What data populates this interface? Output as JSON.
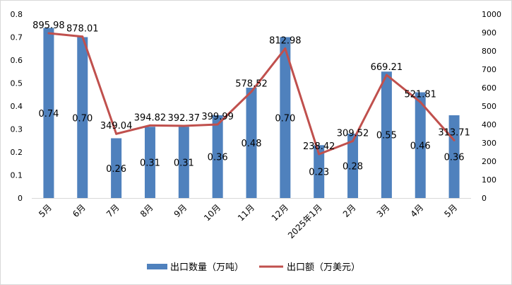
{
  "chart_data": {
    "type": "bar+line",
    "categories": [
      "5月",
      "6月",
      "7月",
      "8月",
      "9月",
      "10月",
      "11月",
      "12月",
      "2025年1月",
      "2月",
      "3月",
      "4月",
      "5月"
    ],
    "series": [
      {
        "name": "出口数量（万吨）",
        "type": "bar",
        "axis": "left",
        "values": [
          0.74,
          0.7,
          0.26,
          0.31,
          0.31,
          0.36,
          0.48,
          0.7,
          0.23,
          0.28,
          0.55,
          0.46,
          0.36
        ],
        "labels": [
          "0.74",
          "0.70",
          "0.26",
          "0.31",
          "0.31",
          "0.36",
          "0.48",
          "0.70",
          "0.23",
          "0.28",
          "0.55",
          "0.46",
          "0.36"
        ],
        "color": "#4f81bd"
      },
      {
        "name": "出口额（万美元）",
        "type": "line",
        "axis": "right",
        "values": [
          895.98,
          878.01,
          349.04,
          394.82,
          392.37,
          399.99,
          578.52,
          812.98,
          238.42,
          309.52,
          669.21,
          521.81,
          313.71
        ],
        "labels": [
          "895.98",
          "878.01",
          "349.04",
          "394.82",
          "392.37",
          "399.99",
          "578.52",
          "812.98",
          "238.42",
          "309.52",
          "669.21",
          "521.81",
          "313.71"
        ],
        "color": "#c0504d"
      }
    ],
    "y_left": {
      "min": 0,
      "max": 0.8,
      "ticks": [
        "0",
        "0.1",
        "0.2",
        "0.3",
        "0.4",
        "0.5",
        "0.6",
        "0.7",
        "0.8"
      ]
    },
    "y_right": {
      "min": 0,
      "max": 1000,
      "ticks": [
        "0",
        "100",
        "200",
        "300",
        "400",
        "500",
        "600",
        "700",
        "800",
        "900",
        "1000"
      ]
    },
    "legend_position": "bottom",
    "grid": false
  }
}
